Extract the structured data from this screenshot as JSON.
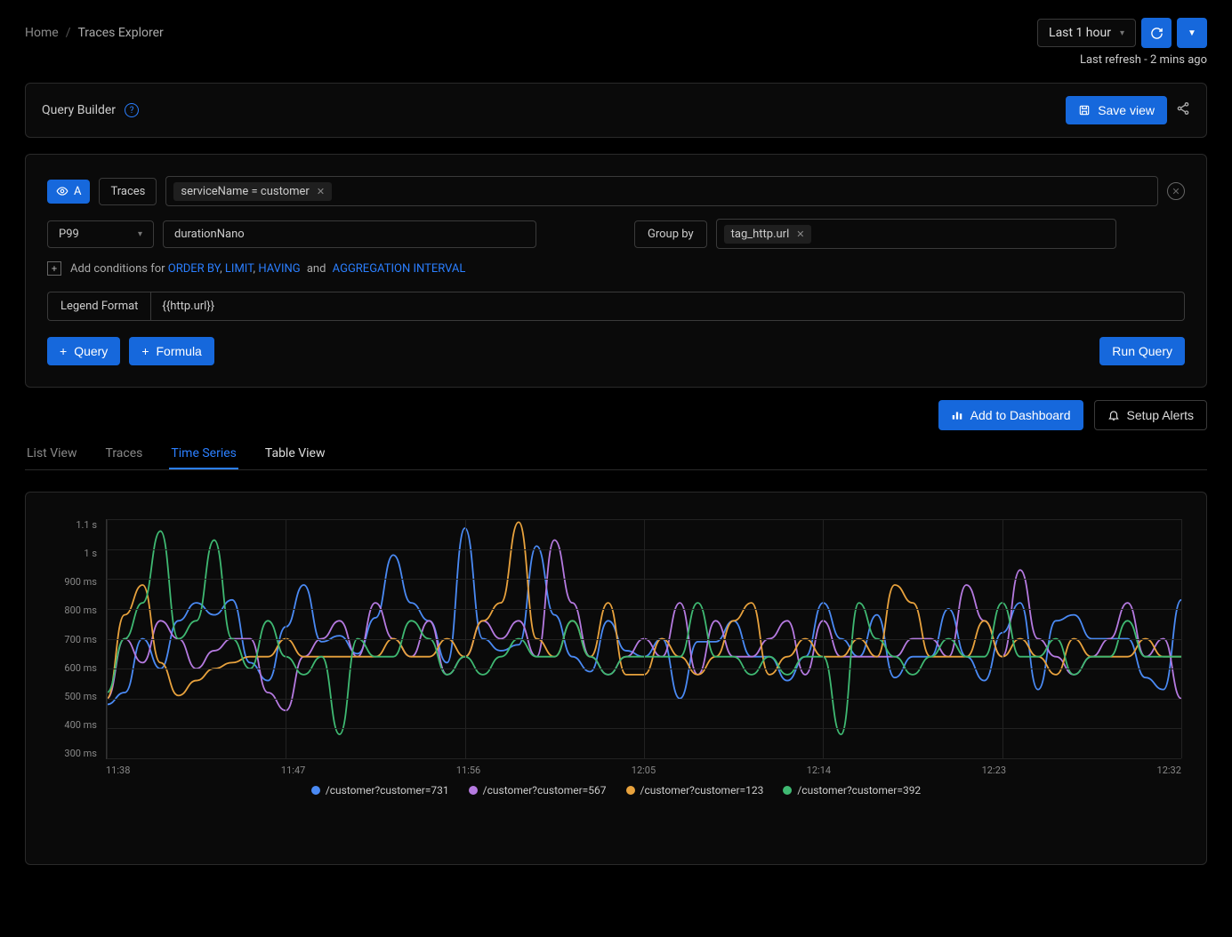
{
  "breadcrumb": {
    "home": "Home",
    "current": "Traces Explorer"
  },
  "time_range": "Last 1 hour",
  "refresh_text": "Last refresh - 2 mins ago",
  "query_builder": {
    "title": "Query Builder",
    "save_view": "Save view"
  },
  "query": {
    "badge": "A",
    "source": "Traces",
    "filter_chip": "serviceName = customer",
    "aggregation": "P99",
    "metric": "durationNano",
    "group_by_label": "Group by",
    "group_by_chip": "tag_http.url",
    "conditions_prefix": "Add conditions for",
    "order_by": "ORDER BY",
    "limit": "LIMIT",
    "having": "HAVING",
    "and": "and",
    "agg_interval": "AGGREGATION INTERVAL",
    "legend_label": "Legend Format",
    "legend_value": "{{http.url}}",
    "add_query": "Query",
    "add_formula": "Formula",
    "run_query": "Run Query"
  },
  "dash": {
    "add_to_dashboard": "Add to Dashboard",
    "setup_alerts": "Setup Alerts"
  },
  "tabs": {
    "list_view": "List View",
    "traces": "Traces",
    "time_series": "Time Series",
    "table_view": "Table View"
  },
  "chart": {
    "type": "line",
    "y_labels": [
      "1.1 s",
      "1 s",
      "900 ms",
      "800 ms",
      "700 ms",
      "600 ms",
      "500 ms",
      "400 ms",
      "300 ms"
    ],
    "x_labels": [
      "11:38",
      "11:47",
      "11:56",
      "12:05",
      "12:14",
      "12:23",
      "12:32"
    ],
    "ylim": [
      300,
      1100
    ],
    "background_color": "#0a0a0a",
    "grid_color": "#222222",
    "axis_color": "#333333",
    "label_color": "#888888",
    "label_fontsize": 11,
    "line_width": 1.8,
    "series": [
      {
        "name": "/customer?customer=731",
        "color": "#4a8af4",
        "values": [
          480,
          520,
          700,
          600,
          760,
          820,
          780,
          830,
          620,
          560,
          740,
          880,
          690,
          710,
          650,
          770,
          980,
          820,
          760,
          620,
          1070,
          700,
          660,
          680,
          1010,
          780,
          640,
          590,
          760,
          660,
          640,
          700,
          500,
          690,
          690,
          760,
          640,
          640,
          560,
          640,
          820,
          700,
          640,
          780,
          570,
          640,
          640,
          800,
          640,
          560,
          720,
          820,
          530,
          760,
          780,
          700,
          700,
          700,
          570,
          530,
          830
        ]
      },
      {
        "name": "/customer?customer=567",
        "color": "#b57ae0",
        "values": [
          500,
          700,
          620,
          760,
          700,
          600,
          660,
          700,
          700,
          520,
          460,
          640,
          700,
          760,
          640,
          820,
          700,
          640,
          760,
          580,
          640,
          760,
          700,
          760,
          640,
          1030,
          820,
          640,
          580,
          640,
          700,
          640,
          820,
          580,
          760,
          640,
          640,
          700,
          760,
          580,
          760,
          640,
          640,
          640,
          640,
          700,
          700,
          640,
          880,
          760,
          640,
          930,
          700,
          640,
          580,
          640,
          700,
          820,
          640,
          700,
          500
        ]
      },
      {
        "name": "/customer?customer=123",
        "color": "#e8a23d",
        "values": [
          500,
          780,
          880,
          620,
          510,
          560,
          600,
          620,
          640,
          640,
          700,
          640,
          640,
          640,
          640,
          640,
          700,
          640,
          640,
          700,
          640,
          760,
          820,
          1090,
          700,
          640,
          760,
          640,
          820,
          580,
          580,
          700,
          640,
          580,
          640,
          760,
          820,
          580,
          640,
          700,
          640,
          640,
          700,
          640,
          880,
          820,
          640,
          640,
          640,
          760,
          640,
          700,
          640,
          580,
          700,
          640,
          640,
          640,
          700,
          640,
          640
        ]
      },
      {
        "name": "/customer?customer=392",
        "color": "#3fb972",
        "values": [
          520,
          700,
          820,
          1060,
          700,
          760,
          1030,
          700,
          600,
          760,
          640,
          580,
          640,
          380,
          700,
          640,
          640,
          760,
          700,
          580,
          640,
          580,
          640,
          700,
          640,
          640,
          760,
          640,
          580,
          640,
          640,
          640,
          640,
          820,
          640,
          640,
          580,
          640,
          580,
          640,
          640,
          380,
          820,
          700,
          640,
          580,
          640,
          700,
          640,
          640,
          820,
          640,
          640,
          700,
          580,
          640,
          640,
          760,
          640,
          640,
          640
        ]
      }
    ]
  }
}
